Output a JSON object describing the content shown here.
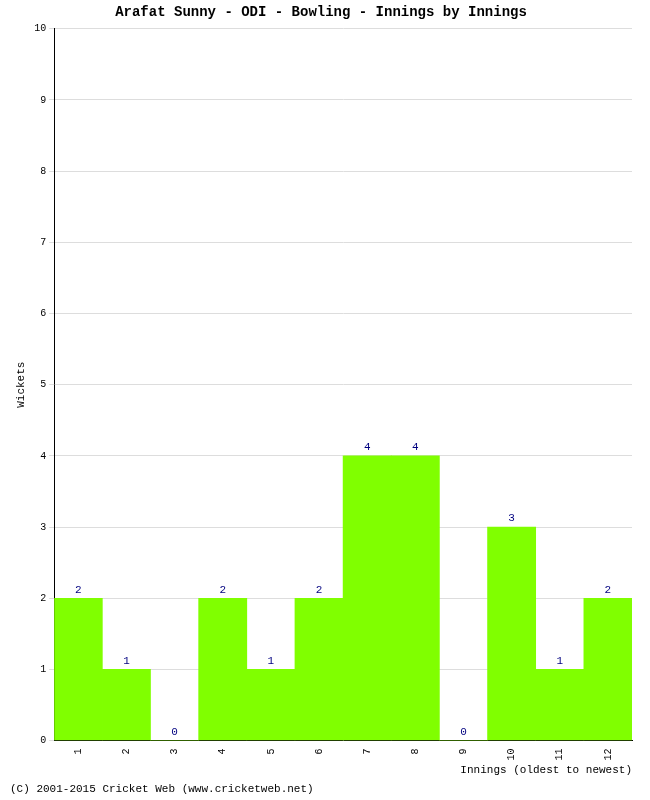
{
  "chart_data": {
    "type": "bar",
    "title": "Arafat Sunny - ODI - Bowling - Innings by Innings",
    "annotations": [
      "(C) 2001-2015 Cricket Web (www.cricketweb.net)"
    ],
    "x_label": "Innings (oldest to newest)",
    "y_label": "Wickets",
    "categories": [
      "1",
      "2",
      "3",
      "4",
      "5",
      "6",
      "7",
      "8",
      "9",
      "10",
      "11",
      "12"
    ],
    "values": [
      2,
      1,
      0,
      2,
      1,
      2,
      4,
      4,
      0,
      3,
      1,
      2
    ],
    "color": "#80ff00",
    "ylim": [
      0,
      10
    ],
    "yticks": [
      0,
      1,
      2,
      3,
      4,
      5,
      6,
      7,
      8,
      9,
      10
    ],
    "grid": true,
    "data_labels": true
  }
}
